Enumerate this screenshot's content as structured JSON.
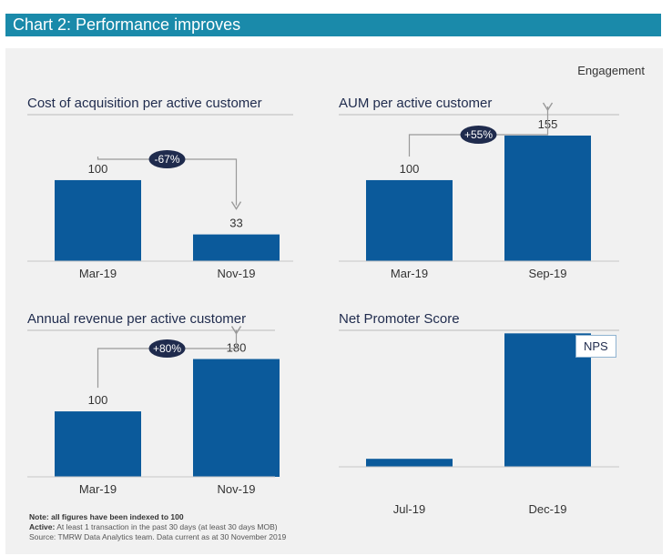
{
  "banner_title": "Chart 2: Performance improves",
  "engagement_label": "Engagement",
  "colors": {
    "bar": "#0b5a9b",
    "badge": "#1f2b4d",
    "arrow": "#999999",
    "banner": "#1a8aaa"
  },
  "chart_data": [
    {
      "type": "bar",
      "title": "Cost of acquisition per active customer",
      "categories": [
        "Mar-19",
        "Nov-19"
      ],
      "values": [
        100,
        33
      ],
      "data_labels": [
        "100",
        "33"
      ],
      "change_badge": "-67%",
      "ylim": [
        0,
        210
      ]
    },
    {
      "type": "bar",
      "title": "AUM per active customer",
      "categories": [
        "Mar-19",
        "Sep-19"
      ],
      "values": [
        100,
        155
      ],
      "data_labels": [
        "100",
        "155"
      ],
      "change_badge": "+55%",
      "ylim": [
        0,
        210
      ]
    },
    {
      "type": "bar",
      "title": "Annual revenue per active customer",
      "categories": [
        "Mar-19",
        "Nov-19"
      ],
      "values": [
        100,
        180
      ],
      "data_labels": [
        "100",
        "180"
      ],
      "change_badge": "+80%",
      "ylim": [
        0,
        260
      ]
    },
    {
      "type": "bar",
      "title": "Net Promoter Score",
      "categories": [
        "Jul-19",
        "Dec-19"
      ],
      "values": [
        6,
        100
      ],
      "data_labels": [
        "",
        ""
      ],
      "legend": "NPS",
      "ylim": [
        0,
        120
      ]
    }
  ],
  "notes": {
    "line1_label": "Note:",
    "line1_text": "all figures have been indexed to 100",
    "line2_label": "Active:",
    "line2_text": "At least 1 transaction in the past 30 days (at least 30 days MOB)",
    "line3_text": "Source: TMRW Data Analytics team. Data current as at 30 November 2019"
  }
}
